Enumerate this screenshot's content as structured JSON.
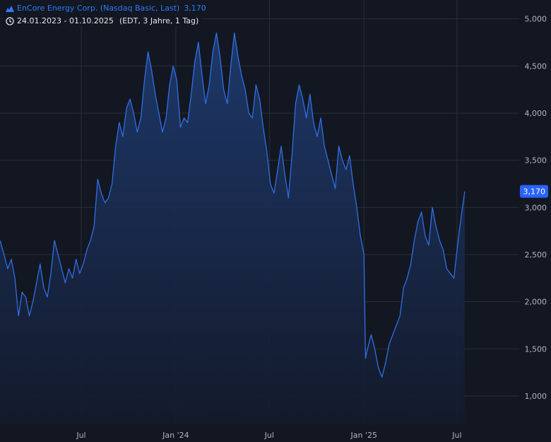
{
  "legend": {
    "title": "EnCore Energy Corp. (Nasdaq Basic, Last)",
    "last_value": "3,170",
    "range": "24.01.2023 - 01.10.2025",
    "meta": "(EDT, 3 Jahre, 1 Tag)"
  },
  "colors": {
    "background": "#131722",
    "grid": "#2a2e39",
    "line": "#2f6fe4",
    "area_top": "#1e3a6e",
    "area_bottom": "#131a2c",
    "badge": "#2962ff"
  },
  "icons": {
    "series": "mountain-area-icon",
    "range": "clock-icon"
  },
  "chart_data": {
    "type": "area",
    "y_axis": {
      "ticks": [
        1000,
        1500,
        2000,
        2500,
        3000,
        3500,
        4000,
        4500,
        5000
      ],
      "tick_labels": [
        "1,000",
        "1,500",
        "2,000",
        "2,500",
        "3,000",
        "3,500",
        "4,000",
        "4,500",
        "5,000"
      ],
      "ylim": [
        700,
        5200
      ]
    },
    "x_axis": {
      "xlim": [
        "2023-01-24",
        "2025-10-30"
      ],
      "tick_dates": [
        "2023-07-01",
        "2024-01-01",
        "2024-07-01",
        "2025-01-01",
        "2025-07-01"
      ],
      "tick_labels": [
        "Jul",
        "Jan '24",
        "Jul",
        "Jan '25",
        "Jul"
      ]
    },
    "grid": true,
    "last_price_label": "3,170",
    "series": [
      {
        "points": [
          [
            "2023-01-24",
            2650
          ],
          [
            "2023-02-01",
            2500
          ],
          [
            "2023-02-08",
            2350
          ],
          [
            "2023-02-15",
            2450
          ],
          [
            "2023-02-22",
            2250
          ],
          [
            "2023-03-01",
            1850
          ],
          [
            "2023-03-08",
            2100
          ],
          [
            "2023-03-15",
            2050
          ],
          [
            "2023-03-22",
            1850
          ],
          [
            "2023-03-29",
            2000
          ],
          [
            "2023-04-05",
            2200
          ],
          [
            "2023-04-12",
            2400
          ],
          [
            "2023-04-19",
            2150
          ],
          [
            "2023-04-26",
            2050
          ],
          [
            "2023-05-03",
            2300
          ],
          [
            "2023-05-10",
            2650
          ],
          [
            "2023-05-17",
            2500
          ],
          [
            "2023-05-24",
            2350
          ],
          [
            "2023-05-31",
            2200
          ],
          [
            "2023-06-07",
            2350
          ],
          [
            "2023-06-14",
            2250
          ],
          [
            "2023-06-21",
            2450
          ],
          [
            "2023-06-28",
            2300
          ],
          [
            "2023-07-05",
            2400
          ],
          [
            "2023-07-12",
            2550
          ],
          [
            "2023-07-19",
            2650
          ],
          [
            "2023-07-26",
            2800
          ],
          [
            "2023-08-02",
            3300
          ],
          [
            "2023-08-09",
            3150
          ],
          [
            "2023-08-16",
            3050
          ],
          [
            "2023-08-23",
            3100
          ],
          [
            "2023-08-30",
            3250
          ],
          [
            "2023-09-06",
            3650
          ],
          [
            "2023-09-13",
            3900
          ],
          [
            "2023-09-20",
            3750
          ],
          [
            "2023-09-27",
            4050
          ],
          [
            "2023-10-04",
            4150
          ],
          [
            "2023-10-11",
            4000
          ],
          [
            "2023-10-18",
            3800
          ],
          [
            "2023-10-25",
            3950
          ],
          [
            "2023-11-01",
            4350
          ],
          [
            "2023-11-08",
            4650
          ],
          [
            "2023-11-15",
            4450
          ],
          [
            "2023-11-22",
            4200
          ],
          [
            "2023-11-29",
            4000
          ],
          [
            "2023-12-06",
            3800
          ],
          [
            "2023-12-13",
            3950
          ],
          [
            "2023-12-20",
            4300
          ],
          [
            "2023-12-27",
            4500
          ],
          [
            "2024-01-03",
            4350
          ],
          [
            "2024-01-10",
            3850
          ],
          [
            "2024-01-17",
            3950
          ],
          [
            "2024-01-24",
            3900
          ],
          [
            "2024-01-31",
            4200
          ],
          [
            "2024-02-07",
            4550
          ],
          [
            "2024-02-14",
            4750
          ],
          [
            "2024-02-21",
            4400
          ],
          [
            "2024-02-28",
            4100
          ],
          [
            "2024-03-06",
            4300
          ],
          [
            "2024-03-13",
            4650
          ],
          [
            "2024-03-20",
            4850
          ],
          [
            "2024-03-27",
            4600
          ],
          [
            "2024-04-03",
            4250
          ],
          [
            "2024-04-10",
            4100
          ],
          [
            "2024-04-17",
            4500
          ],
          [
            "2024-04-24",
            4850
          ],
          [
            "2024-05-01",
            4600
          ],
          [
            "2024-05-08",
            4400
          ],
          [
            "2024-05-15",
            4250
          ],
          [
            "2024-05-22",
            4000
          ],
          [
            "2024-05-29",
            3950
          ],
          [
            "2024-06-05",
            4300
          ],
          [
            "2024-06-12",
            4150
          ],
          [
            "2024-06-19",
            3850
          ],
          [
            "2024-06-26",
            3600
          ],
          [
            "2024-07-03",
            3250
          ],
          [
            "2024-07-10",
            3150
          ],
          [
            "2024-07-17",
            3400
          ],
          [
            "2024-07-24",
            3650
          ],
          [
            "2024-07-31",
            3350
          ],
          [
            "2024-08-07",
            3100
          ],
          [
            "2024-08-14",
            3550
          ],
          [
            "2024-08-21",
            4100
          ],
          [
            "2024-08-28",
            4300
          ],
          [
            "2024-09-04",
            4150
          ],
          [
            "2024-09-11",
            3950
          ],
          [
            "2024-09-18",
            4200
          ],
          [
            "2024-09-25",
            3900
          ],
          [
            "2024-10-02",
            3750
          ],
          [
            "2024-10-09",
            3950
          ],
          [
            "2024-10-16",
            3650
          ],
          [
            "2024-10-23",
            3500
          ],
          [
            "2024-10-30",
            3350
          ],
          [
            "2024-11-06",
            3200
          ],
          [
            "2024-11-13",
            3650
          ],
          [
            "2024-11-20",
            3500
          ],
          [
            "2024-11-27",
            3400
          ],
          [
            "2024-12-04",
            3550
          ],
          [
            "2024-12-11",
            3250
          ],
          [
            "2024-12-18",
            3000
          ],
          [
            "2024-12-25",
            2700
          ],
          [
            "2025-01-01",
            2500
          ],
          [
            "2025-01-04",
            1400
          ],
          [
            "2025-01-08",
            1500
          ],
          [
            "2025-01-15",
            1650
          ],
          [
            "2025-01-22",
            1500
          ],
          [
            "2025-01-29",
            1300
          ],
          [
            "2025-02-05",
            1200
          ],
          [
            "2025-02-12",
            1350
          ],
          [
            "2025-02-19",
            1550
          ],
          [
            "2025-02-26",
            1650
          ],
          [
            "2025-03-05",
            1750
          ],
          [
            "2025-03-12",
            1850
          ],
          [
            "2025-03-19",
            2150
          ],
          [
            "2025-03-26",
            2250
          ],
          [
            "2025-04-02",
            2400
          ],
          [
            "2025-04-09",
            2650
          ],
          [
            "2025-04-16",
            2850
          ],
          [
            "2025-04-23",
            2950
          ],
          [
            "2025-04-30",
            2700
          ],
          [
            "2025-05-07",
            2600
          ],
          [
            "2025-05-14",
            3000
          ],
          [
            "2025-05-21",
            2800
          ],
          [
            "2025-05-28",
            2650
          ],
          [
            "2025-06-04",
            2550
          ],
          [
            "2025-06-11",
            2350
          ],
          [
            "2025-06-18",
            2300
          ],
          [
            "2025-06-25",
            2250
          ],
          [
            "2025-07-02",
            2600
          ],
          [
            "2025-07-09",
            2900
          ],
          [
            "2025-07-16",
            3170
          ]
        ]
      }
    ]
  }
}
